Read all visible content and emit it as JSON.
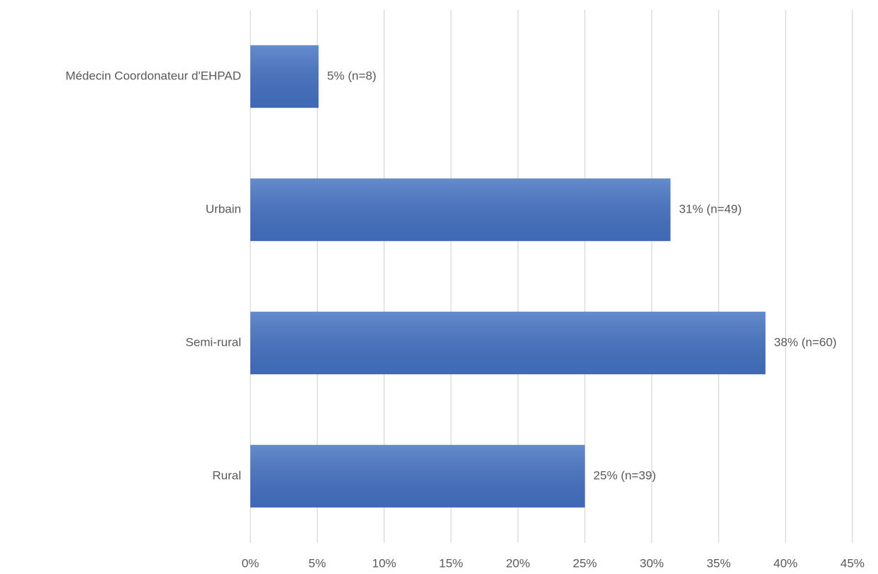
{
  "chart_data": {
    "type": "bar",
    "orientation": "horizontal",
    "categories": [
      "Médecin Coordonateur d'EHPAD",
      "Urbain",
      "Semi-rural",
      "Rural"
    ],
    "values": [
      5.1,
      31.4,
      38.5,
      25.0
    ],
    "value_labels": [
      "5% (n=8)",
      "31% (n=49)",
      "38% (n=60)",
      "25% (n=39)"
    ],
    "color": "#4472c4",
    "xlim": [
      0,
      45
    ],
    "xticks": [
      {
        "value": 0,
        "label": "0%"
      },
      {
        "value": 5,
        "label": "5%"
      },
      {
        "value": 10,
        "label": "10%"
      },
      {
        "value": 15,
        "label": "15%"
      },
      {
        "value": 20,
        "label": "20%"
      },
      {
        "value": 25,
        "label": "25%"
      },
      {
        "value": 30,
        "label": "30%"
      },
      {
        "value": 35,
        "label": "35%"
      },
      {
        "value": 40,
        "label": "40%"
      },
      {
        "value": 45,
        "label": "45%"
      }
    ],
    "grid": true
  }
}
